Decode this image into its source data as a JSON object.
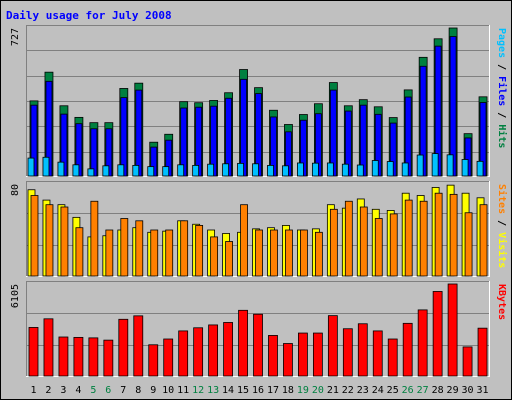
{
  "chart_data": {
    "type": "bar",
    "title": "Daily usage for July 2008",
    "categories": [
      "1",
      "2",
      "3",
      "4",
      "5",
      "6",
      "7",
      "8",
      "9",
      "10",
      "11",
      "12",
      "13",
      "14",
      "15",
      "16",
      "17",
      "18",
      "19",
      "20",
      "21",
      "22",
      "23",
      "24",
      "25",
      "26",
      "27",
      "28",
      "29",
      "30",
      "31"
    ],
    "weekend_days": [
      "5",
      "6",
      "12",
      "13",
      "19",
      "20",
      "26",
      "27"
    ],
    "panels": [
      {
        "id": "hits-panel",
        "max_label": "727",
        "ylim": [
          0,
          727
        ],
        "grid": true,
        "labels": [
          {
            "text": "Hits",
            "color": "#008040"
          },
          {
            "text": "Files",
            "color": "#0000ff"
          },
          {
            "text": "Pages",
            "color": "#00c0ff"
          }
        ],
        "series": [
          {
            "name": "Hits",
            "color": "#008040",
            "values": [
              369,
              510,
              345,
              288,
              262,
              262,
              430,
              456,
              166,
              205,
              365,
              360,
              371,
              409,
              523,
              434,
              323,
              253,
              302,
              355,
              459,
              345,
              375,
              340,
              287,
              423,
              583,
              674,
              727,
              208,
              389
            ]
          },
          {
            "name": "Files",
            "color": "#0000ff",
            "values": [
              348,
              465,
              304,
              257,
              232,
              232,
              385,
              422,
              142,
              176,
              334,
              338,
              343,
              382,
              475,
              405,
              290,
              217,
              274,
              306,
              422,
              319,
              348,
              303,
              260,
              388,
              539,
              638,
              685,
              187,
              361
            ]
          },
          {
            "name": "Pages",
            "color": "#00c0ff",
            "values": [
              88,
              92,
              68,
              55,
              35,
              50,
              55,
              52,
              46,
              46,
              55,
              52,
              58,
              60,
              62,
              60,
              52,
              50,
              64,
              63,
              64,
              58,
              54,
              76,
              71,
              64,
              103,
              110,
              104,
              81,
              72
            ]
          }
        ]
      },
      {
        "id": "visits-panel",
        "max_label": "80",
        "ylim": [
          0,
          80
        ],
        "grid": true,
        "labels": [
          {
            "text": "Visits",
            "color": "#ffff00"
          },
          {
            "text": "Sites",
            "color": "#ff8000"
          }
        ],
        "series": [
          {
            "name": "Visits",
            "color": "#ffff00",
            "values": [
              75,
              66,
              62,
              51,
              34,
              35,
              40,
              42,
              38,
              39,
              48,
              45,
              40,
              37,
              38,
              41,
              42,
              44,
              40,
              41,
              62,
              59,
              67,
              58,
              57,
              72,
              70,
              77,
              79,
              72,
              68
            ]
          },
          {
            "name": "Sites",
            "color": "#ff8000",
            "values": [
              70,
              62,
              60,
              42,
              65,
              40,
              50,
              48,
              40,
              40,
              48,
              44,
              34,
              30,
              62,
              40,
              40,
              40,
              40,
              38,
              58,
              65,
              60,
              50,
              54,
              66,
              65,
              72,
              71,
              55,
              62
            ]
          }
        ]
      },
      {
        "id": "kbytes-panel",
        "max_label": "6105",
        "ylim": [
          0,
          6105
        ],
        "grid": true,
        "labels": [
          {
            "text": "KBytes",
            "color": "#ff0000"
          }
        ],
        "series": [
          {
            "name": "KBytes",
            "color": "#ff0000",
            "values": [
              3223,
              3795,
              2588,
              2562,
              2530,
              2380,
              3763,
              3992,
              2072,
              2455,
              2992,
              3200,
              3389,
              3552,
              4359,
              4100,
              2692,
              2156,
              2850,
              2850,
              4006,
              3136,
              3467,
              2992,
              2455,
              3495,
              4387,
              5610,
              6105,
              1930,
              3174
            ]
          }
        ]
      }
    ]
  }
}
